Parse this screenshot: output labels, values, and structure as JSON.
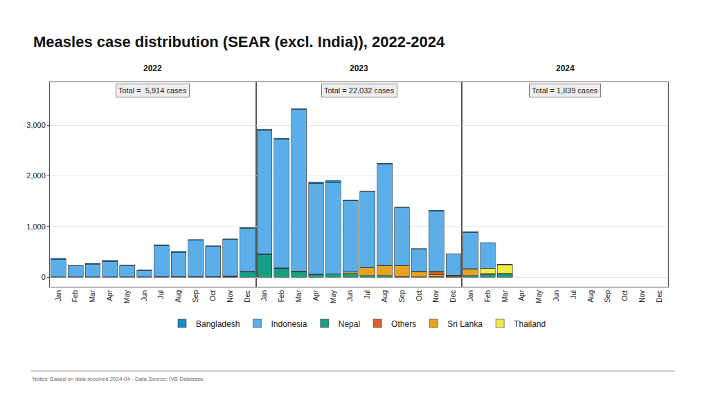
{
  "chart_data": {
    "type": "bar",
    "stacked": true,
    "grid": true,
    "legend": "bottom",
    "title": "Measles case distribution (SEAR (excl. India)), 2022-2024",
    "note": "Notes: Based on data received 2024-04 - Data Source: IVB Database",
    "ylim": [
      -190,
      3850
    ],
    "yticks": [
      0,
      {
        "value": 1000,
        "label": "1,000"
      },
      {
        "value": 2000,
        "label": "2,000"
      },
      {
        "value": 3000,
        "label": "3,000"
      }
    ],
    "panels": [
      {
        "title": "2022",
        "annotation": "Total =  5,914 cases",
        "categories": [
          "Jan",
          "Feb",
          "Mar",
          "Apr",
          "May",
          "Jun",
          "Jul",
          "Aug",
          "Sep",
          "Oct",
          "Nov",
          "Dec"
        ],
        "series": [
          {
            "name": "Nepal",
            "color": "#169f84",
            "values": [
              2,
              2,
              2,
              2,
              2,
              2,
              3,
              5,
              5,
              5,
              10,
              100
            ]
          },
          {
            "name": "Sri Lanka",
            "color": "#e9a122",
            "values": [
              2,
              1,
              1,
              1,
              1,
              1,
              2,
              2,
              2,
              2,
              5,
              5
            ]
          },
          {
            "name": "Others",
            "color": "#d8612a",
            "values": [
              1,
              1,
              1,
              1,
              1,
              1,
              2,
              2,
              2,
              2,
              10,
              5
            ]
          },
          {
            "name": "Thailand",
            "color": "#f2e94a",
            "values": [
              1,
              1,
              1,
              1,
              1,
              1,
              1,
              1,
              1,
              1,
              1,
              1
            ]
          },
          {
            "name": "Indonesia",
            "color": "#5baee8",
            "values": [
              350,
              215,
              255,
              310,
              225,
              127,
              617,
              475,
              715,
              595,
              714,
              854
            ]
          },
          {
            "name": "Bangladesh",
            "color": "#1b8bc9",
            "values": [
              15,
              10,
              12,
              15,
              10,
              8,
              15,
              25,
              15,
              15,
              15,
              15
            ]
          }
        ]
      },
      {
        "title": "2023",
        "annotation": "Total = 22,032 cases",
        "categories": [
          "Jan",
          "Feb",
          "Mar",
          "Apr",
          "May",
          "Jun",
          "Jul",
          "Aug",
          "Sep",
          "Oct",
          "Nov",
          "Dec"
        ],
        "series": [
          {
            "name": "Nepal",
            "color": "#169f84",
            "values": [
              450,
              170,
              110,
              50,
              60,
              70,
              30,
              30,
              10,
              5,
              10,
              5
            ]
          },
          {
            "name": "Sri Lanka",
            "color": "#e9a122",
            "values": [
              5,
              5,
              5,
              5,
              5,
              30,
              150,
              190,
              210,
              100,
              45,
              10
            ]
          },
          {
            "name": "Others",
            "color": "#d8612a",
            "values": [
              2,
              2,
              2,
              2,
              2,
              5,
              10,
              10,
              5,
              10,
              55,
              25
            ]
          },
          {
            "name": "Thailand",
            "color": "#f2e94a",
            "values": [
              2,
              2,
              2,
              2,
              2,
              2,
              2,
              2,
              2,
              2,
              2,
              2
            ]
          },
          {
            "name": "Indonesia",
            "color": "#5baee8",
            "values": [
              2440,
              2540,
              3190,
              1795,
              1795,
              1400,
              1490,
              2000,
              1140,
              435,
              1195,
              410
            ]
          },
          {
            "name": "Bangladesh",
            "color": "#1b8bc9",
            "values": [
              20,
              20,
              20,
              25,
              45,
              20,
              15,
              15,
              15,
              10,
              15,
              10
            ]
          }
        ]
      },
      {
        "title": "2024",
        "annotation": "Total = 1,839 cases",
        "categories": [
          "Jan",
          "Feb",
          "Mar",
          "Apr",
          "May",
          "Jun",
          "Jul",
          "Aug",
          "Sep",
          "Oct",
          "Nov",
          "Dec"
        ],
        "series": [
          {
            "name": "Nepal",
            "color": "#169f84",
            "values": [
              30,
              50,
              60,
              null,
              null,
              null,
              null,
              null,
              null,
              null,
              null,
              null
            ]
          },
          {
            "name": "Sri Lanka",
            "color": "#e9a122",
            "values": [
              110,
              20,
              5,
              null,
              null,
              null,
              null,
              null,
              null,
              null,
              null,
              null
            ]
          },
          {
            "name": "Others",
            "color": "#d8612a",
            "values": [
              5,
              5,
              5,
              null,
              null,
              null,
              null,
              null,
              null,
              null,
              null,
              null
            ]
          },
          {
            "name": "Thailand",
            "color": "#f2e94a",
            "values": [
              20,
              100,
              175,
              null,
              null,
              null,
              null,
              null,
              null,
              null,
              null,
              null
            ]
          },
          {
            "name": "Indonesia",
            "color": "#5baee8",
            "values": [
              720,
              495,
              5,
              null,
              null,
              null,
              null,
              null,
              null,
              null,
              null,
              null
            ]
          },
          {
            "name": "Bangladesh",
            "color": "#1b8bc9",
            "values": [
              15,
              10,
              0,
              null,
              null,
              null,
              null,
              null,
              null,
              null,
              null,
              null
            ]
          }
        ]
      }
    ]
  }
}
